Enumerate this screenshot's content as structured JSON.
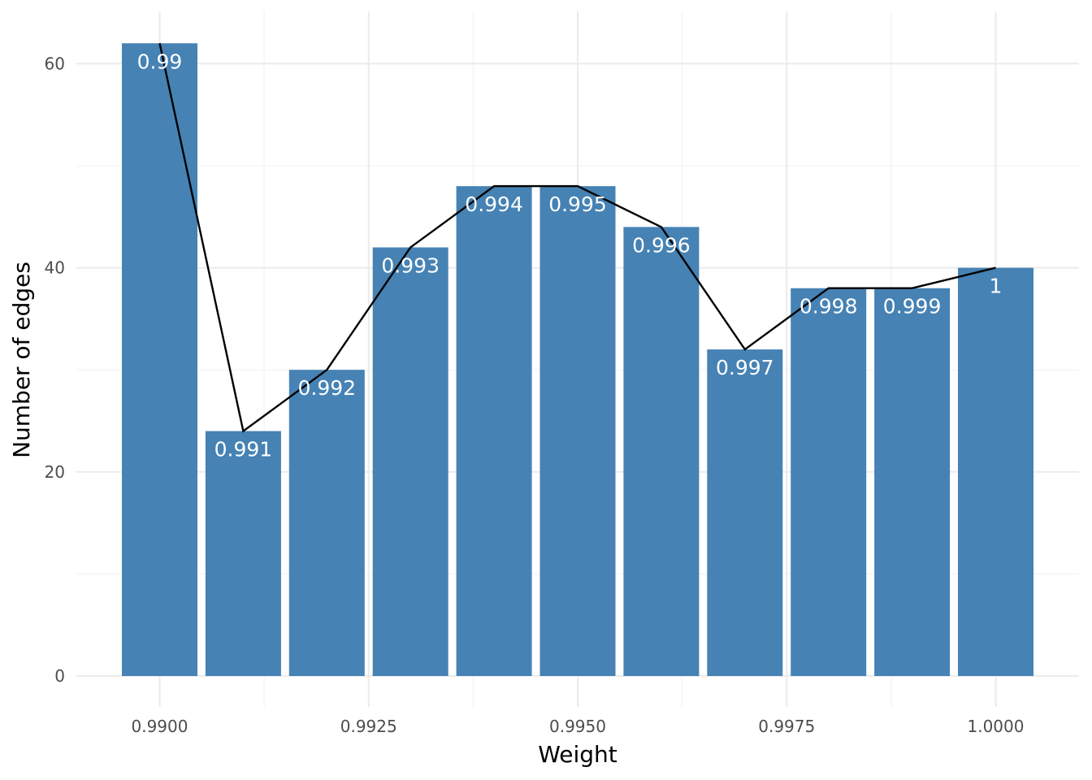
{
  "chart_data": {
    "type": "bar",
    "title": "",
    "xlabel": "Weight",
    "ylabel": "Number of edges",
    "x": [
      0.99,
      0.991,
      0.992,
      0.993,
      0.994,
      0.995,
      0.996,
      0.997,
      0.998,
      0.999,
      1.0
    ],
    "values": [
      62,
      24,
      30,
      42,
      48,
      48,
      44,
      32,
      38,
      38,
      40
    ],
    "bar_labels": [
      "0.99",
      "0.991",
      "0.992",
      "0.993",
      "0.994",
      "0.995",
      "0.996",
      "0.997",
      "0.998",
      "0.999",
      "1"
    ],
    "overlay_line": "line connecting the top of each bar",
    "xlim": [
      0.9895,
      1.0005
    ],
    "ylim": [
      0,
      65
    ],
    "x_ticks": [
      0.99,
      0.9925,
      0.995,
      0.9975,
      1.0
    ],
    "x_tick_labels": [
      "0.9900",
      "0.9925",
      "0.9950",
      "0.9975",
      "1.0000"
    ],
    "y_ticks": [
      0,
      20,
      40,
      60
    ],
    "y_tick_labels": [
      "0",
      "20",
      "40",
      "60"
    ],
    "grid": true,
    "legend": "none",
    "colors": {
      "bar": "#4682b4",
      "line": "#000000",
      "bar_label": "#ffffff"
    }
  }
}
